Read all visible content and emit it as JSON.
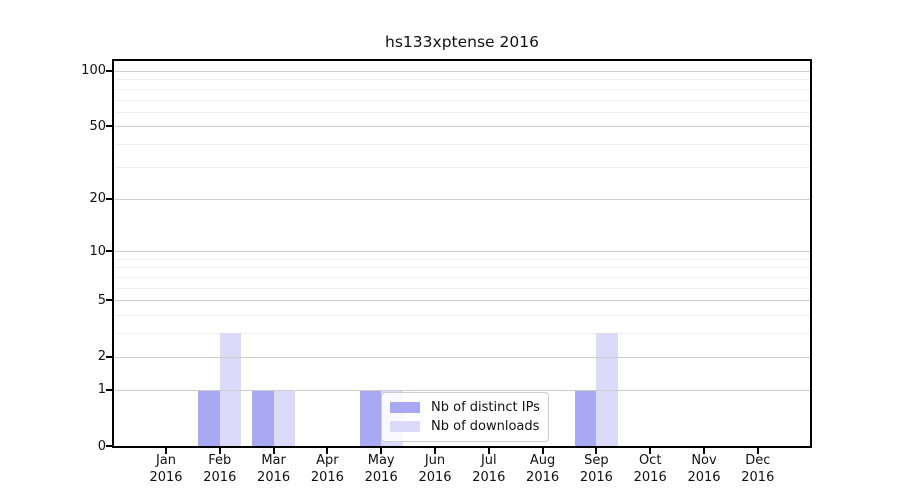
{
  "chart_data": {
    "type": "bar",
    "title": "hs133xptense 2016",
    "categories": [
      "Jan",
      "Feb",
      "Mar",
      "Apr",
      "May",
      "Jun",
      "Jul",
      "Aug",
      "Sep",
      "Oct",
      "Nov",
      "Dec"
    ],
    "category_year": "2016",
    "series": [
      {
        "name": "Nb of distinct IPs",
        "color": "#a9a9f3",
        "values": [
          0,
          1,
          1,
          0,
          1,
          0,
          0,
          0,
          1,
          0,
          0,
          0
        ]
      },
      {
        "name": "Nb of downloads",
        "color": "#dbdaf8",
        "values": [
          0,
          3,
          1,
          0,
          1,
          0,
          0,
          0,
          3,
          0,
          0,
          0
        ]
      }
    ],
    "yscale": "log1p",
    "ylim": [
      0,
      112
    ],
    "yticks": [
      0,
      1,
      2,
      5,
      10,
      20,
      50,
      100
    ],
    "minor_gridline_values": [
      3,
      4,
      6,
      7,
      8,
      9,
      30,
      40,
      60,
      70,
      80,
      90
    ],
    "grid": true,
    "legend_position": "inside-bottom-center",
    "colors": {
      "grid_major": "#cdcdcd",
      "grid_minor": "#efefef",
      "axis": "#000000",
      "text": "#111111",
      "background": "#ffffff"
    }
  }
}
